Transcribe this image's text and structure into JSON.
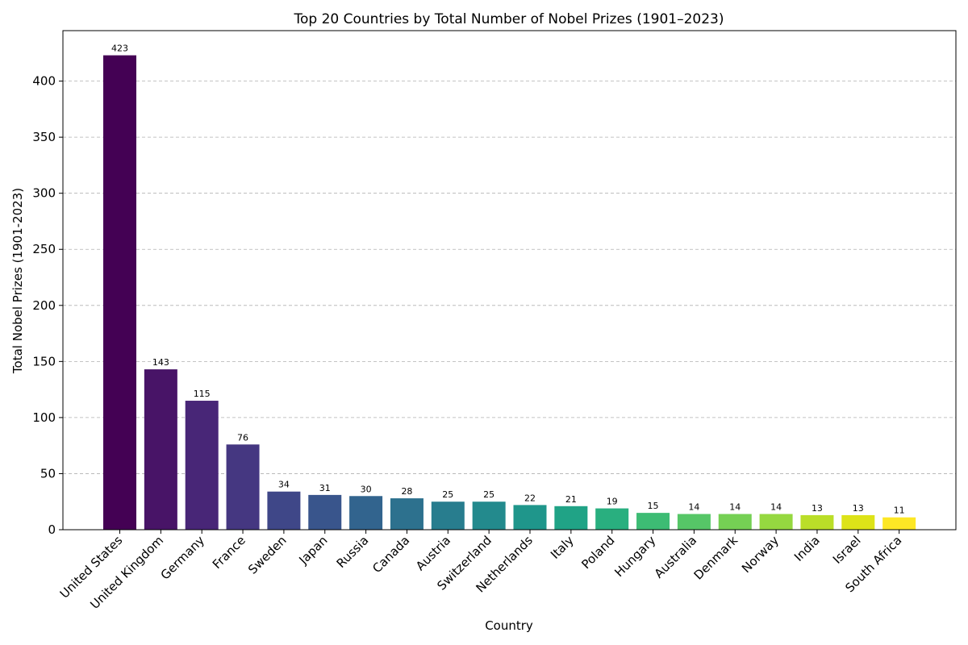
{
  "chart_data": {
    "type": "bar",
    "title": "Top 20 Countries by Total Number of Nobel Prizes (1901–2023)",
    "xlabel": "Country",
    "ylabel": "Total Nobel Prizes (1901-2023)",
    "ylim": [
      0,
      445
    ],
    "yticks": [
      0,
      50,
      100,
      150,
      200,
      250,
      300,
      350,
      400
    ],
    "grid": "y-dashed",
    "categories": [
      "United States",
      "United Kingdom",
      "Germany",
      "France",
      "Sweden",
      "Japan",
      "Russia",
      "Canada",
      "Austria",
      "Switzerland",
      "Netherlands",
      "Italy",
      "Poland",
      "Hungary",
      "Australia",
      "Denmark",
      "Norway",
      "India",
      "Israel",
      "South Africa"
    ],
    "values": [
      423,
      143,
      115,
      76,
      34,
      31,
      30,
      28,
      25,
      25,
      22,
      21,
      19,
      15,
      14,
      14,
      14,
      13,
      13,
      11
    ],
    "colors": [
      "#440154",
      "#481467",
      "#482677",
      "#453781",
      "#3f4788",
      "#39558c",
      "#32648e",
      "#2d718e",
      "#287d8e",
      "#238a8d",
      "#1f968b",
      "#20a386",
      "#29af7f",
      "#3dbc74",
      "#56c667",
      "#75d054",
      "#95d840",
      "#bade28",
      "#dde318",
      "#fde725"
    ]
  }
}
